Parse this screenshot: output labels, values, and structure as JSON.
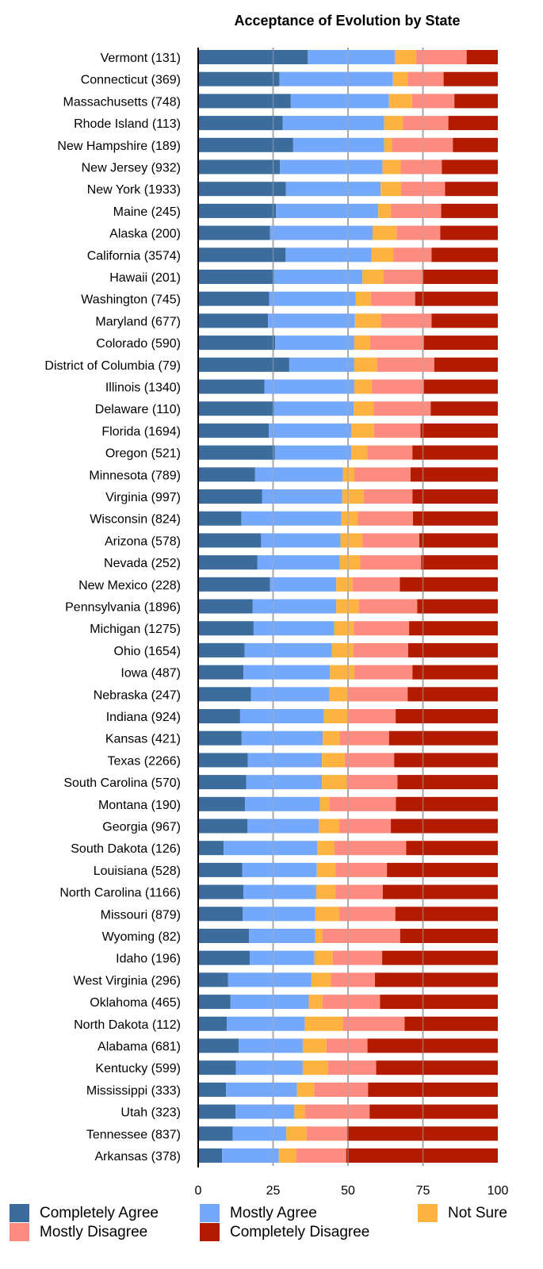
{
  "chart_data": {
    "type": "bar",
    "orientation": "horizontal",
    "stacked": true,
    "title": "Acceptance of Evolution by State",
    "xlim": [
      0,
      100
    ],
    "xticks": [
      "0",
      "25",
      "50",
      "75",
      "100"
    ],
    "grid": true,
    "legend_position": "bottom",
    "series": [
      {
        "name": "Completely Agree",
        "color": "#3b6c9c"
      },
      {
        "name": "Mostly Agree",
        "color": "#74a8fb"
      },
      {
        "name": "Not Sure",
        "color": "#fdb33f"
      },
      {
        "name": "Mostly Disagree",
        "color": "#fd8b80"
      },
      {
        "name": "Completely Disagree",
        "color": "#b31b00"
      }
    ],
    "rows": [
      {
        "label": "Vermont (131)",
        "values": [
          36.6,
          29.1,
          7.0,
          16.9,
          10.4
        ]
      },
      {
        "label": "Connecticut (369)",
        "values": [
          27.1,
          37.9,
          4.9,
          12.0,
          18.1
        ]
      },
      {
        "label": "Massachusetts (748)",
        "values": [
          30.9,
          32.8,
          7.7,
          14.1,
          14.5
        ]
      },
      {
        "label": "Rhode Island (113)",
        "values": [
          28.2,
          33.9,
          6.2,
          15.2,
          16.5
        ]
      },
      {
        "label": "New Hampshire (189)",
        "values": [
          31.7,
          30.4,
          2.6,
          20.3,
          15.0
        ]
      },
      {
        "label": "New Jersey (932)",
        "values": [
          27.3,
          34.2,
          6.1,
          13.7,
          18.7
        ]
      },
      {
        "label": "New York (1933)",
        "values": [
          29.3,
          31.6,
          6.8,
          14.7,
          17.6
        ]
      },
      {
        "label": "Maine (245)",
        "values": [
          26.0,
          34.1,
          4.2,
          16.8,
          18.9
        ]
      },
      {
        "label": "Alaska (200)",
        "values": [
          24.0,
          34.2,
          8.0,
          14.6,
          19.2
        ]
      },
      {
        "label": "California (3574)",
        "values": [
          29.2,
          28.6,
          7.3,
          12.8,
          22.1
        ]
      },
      {
        "label": "Hawaii (201)",
        "values": [
          25.3,
          29.5,
          7.1,
          13.0,
          25.1
        ]
      },
      {
        "label": "Washington (745)",
        "values": [
          23.7,
          28.9,
          5.0,
          14.8,
          27.6
        ]
      },
      {
        "label": "Maryland (677)",
        "values": [
          23.3,
          29.0,
          8.7,
          16.9,
          22.1
        ]
      },
      {
        "label": "Colorado (590)",
        "values": [
          25.7,
          26.4,
          5.3,
          17.9,
          24.7
        ]
      },
      {
        "label": "District of Columbia (79)",
        "values": [
          30.4,
          21.7,
          7.6,
          19.1,
          21.2
        ]
      },
      {
        "label": "Illinois (1340)",
        "values": [
          22.1,
          30.0,
          5.8,
          17.4,
          24.7
        ]
      },
      {
        "label": "Delaware (110)",
        "values": [
          25.3,
          26.6,
          6.6,
          19.1,
          22.4
        ]
      },
      {
        "label": "Florida (1694)",
        "values": [
          23.6,
          27.5,
          7.6,
          15.5,
          25.8
        ]
      },
      {
        "label": "Oregon (521)",
        "values": [
          25.6,
          25.5,
          5.3,
          15.1,
          28.5
        ]
      },
      {
        "label": "Minnesota (789)",
        "values": [
          19.0,
          29.3,
          3.8,
          18.8,
          29.1
        ]
      },
      {
        "label": "Virginia (997)",
        "values": [
          21.3,
          26.8,
          7.1,
          16.3,
          28.5
        ]
      },
      {
        "label": "Wisconsin (824)",
        "values": [
          14.4,
          33.4,
          5.5,
          18.4,
          28.3
        ]
      },
      {
        "label": "Arizona (578)",
        "values": [
          21.0,
          26.5,
          7.3,
          19.0,
          26.2
        ]
      },
      {
        "label": "Nevada (252)",
        "values": [
          19.8,
          27.5,
          6.8,
          20.3,
          25.6
        ]
      },
      {
        "label": "New Mexico (228)",
        "values": [
          24.0,
          22.1,
          5.4,
          15.8,
          32.7
        ]
      },
      {
        "label": "Pennsylvania (1896)",
        "values": [
          18.2,
          27.9,
          7.5,
          19.5,
          26.9
        ]
      },
      {
        "label": "Michigan (1275)",
        "values": [
          18.5,
          26.9,
          6.5,
          18.5,
          29.6
        ]
      },
      {
        "label": "Ohio (1654)",
        "values": [
          15.5,
          29.1,
          7.2,
          18.3,
          29.9
        ]
      },
      {
        "label": "Iowa (487)",
        "values": [
          15.1,
          28.9,
          8.1,
          19.4,
          28.5
        ]
      },
      {
        "label": "Nebraska (247)",
        "values": [
          17.6,
          26.2,
          6.1,
          20.0,
          30.1
        ]
      },
      {
        "label": "Indiana (924)",
        "values": [
          14.0,
          28.0,
          8.0,
          15.9,
          34.1
        ]
      },
      {
        "label": "Kansas (421)",
        "values": [
          14.5,
          27.1,
          5.6,
          16.5,
          36.3
        ]
      },
      {
        "label": "Texas (2266)",
        "values": [
          16.6,
          24.7,
          7.6,
          16.5,
          34.6
        ]
      },
      {
        "label": "South Carolina (570)",
        "values": [
          16.0,
          25.3,
          8.3,
          16.9,
          33.5
        ]
      },
      {
        "label": "Montana (190)",
        "values": [
          15.6,
          25.0,
          3.3,
          22.1,
          34.0
        ]
      },
      {
        "label": "Georgia (967)",
        "values": [
          16.4,
          23.9,
          6.8,
          17.2,
          35.7
        ]
      },
      {
        "label": "South Dakota (126)",
        "values": [
          8.5,
          31.2,
          5.7,
          24.0,
          30.6
        ]
      },
      {
        "label": "Louisiana (528)",
        "values": [
          14.7,
          24.9,
          6.2,
          17.2,
          37.0
        ]
      },
      {
        "label": "North Carolina (1166)",
        "values": [
          15.1,
          24.3,
          6.4,
          15.8,
          38.4
        ]
      },
      {
        "label": "Missouri (879)",
        "values": [
          14.9,
          24.2,
          8.0,
          18.7,
          34.2
        ]
      },
      {
        "label": "Wyoming (82)",
        "values": [
          17.0,
          22.1,
          2.4,
          25.9,
          32.6
        ]
      },
      {
        "label": "Idaho (196)",
        "values": [
          17.2,
          21.6,
          6.1,
          16.5,
          38.6
        ]
      },
      {
        "label": "West Virginia (296)",
        "values": [
          10.0,
          27.8,
          6.5,
          14.7,
          41.0
        ]
      },
      {
        "label": "Oklahoma (465)",
        "values": [
          10.8,
          26.1,
          4.6,
          19.2,
          39.3
        ]
      },
      {
        "label": "North Dakota (112)",
        "values": [
          9.6,
          26.0,
          12.7,
          20.6,
          31.1
        ]
      },
      {
        "label": "Alabama (681)",
        "values": [
          13.5,
          21.4,
          7.9,
          13.7,
          43.5
        ]
      },
      {
        "label": "Kentucky (599)",
        "values": [
          12.6,
          22.3,
          8.4,
          16.1,
          40.6
        ]
      },
      {
        "label": "Mississippi (333)",
        "values": [
          9.3,
          23.7,
          5.7,
          18.0,
          43.3
        ]
      },
      {
        "label": "Utah (323)",
        "values": [
          12.5,
          19.6,
          3.5,
          21.6,
          42.8
        ]
      },
      {
        "label": "Tennessee (837)",
        "values": [
          11.5,
          17.9,
          6.8,
          13.5,
          50.3
        ]
      },
      {
        "label": "Arkansas (378)",
        "values": [
          8.0,
          18.9,
          5.8,
          16.7,
          50.6
        ]
      }
    ]
  }
}
